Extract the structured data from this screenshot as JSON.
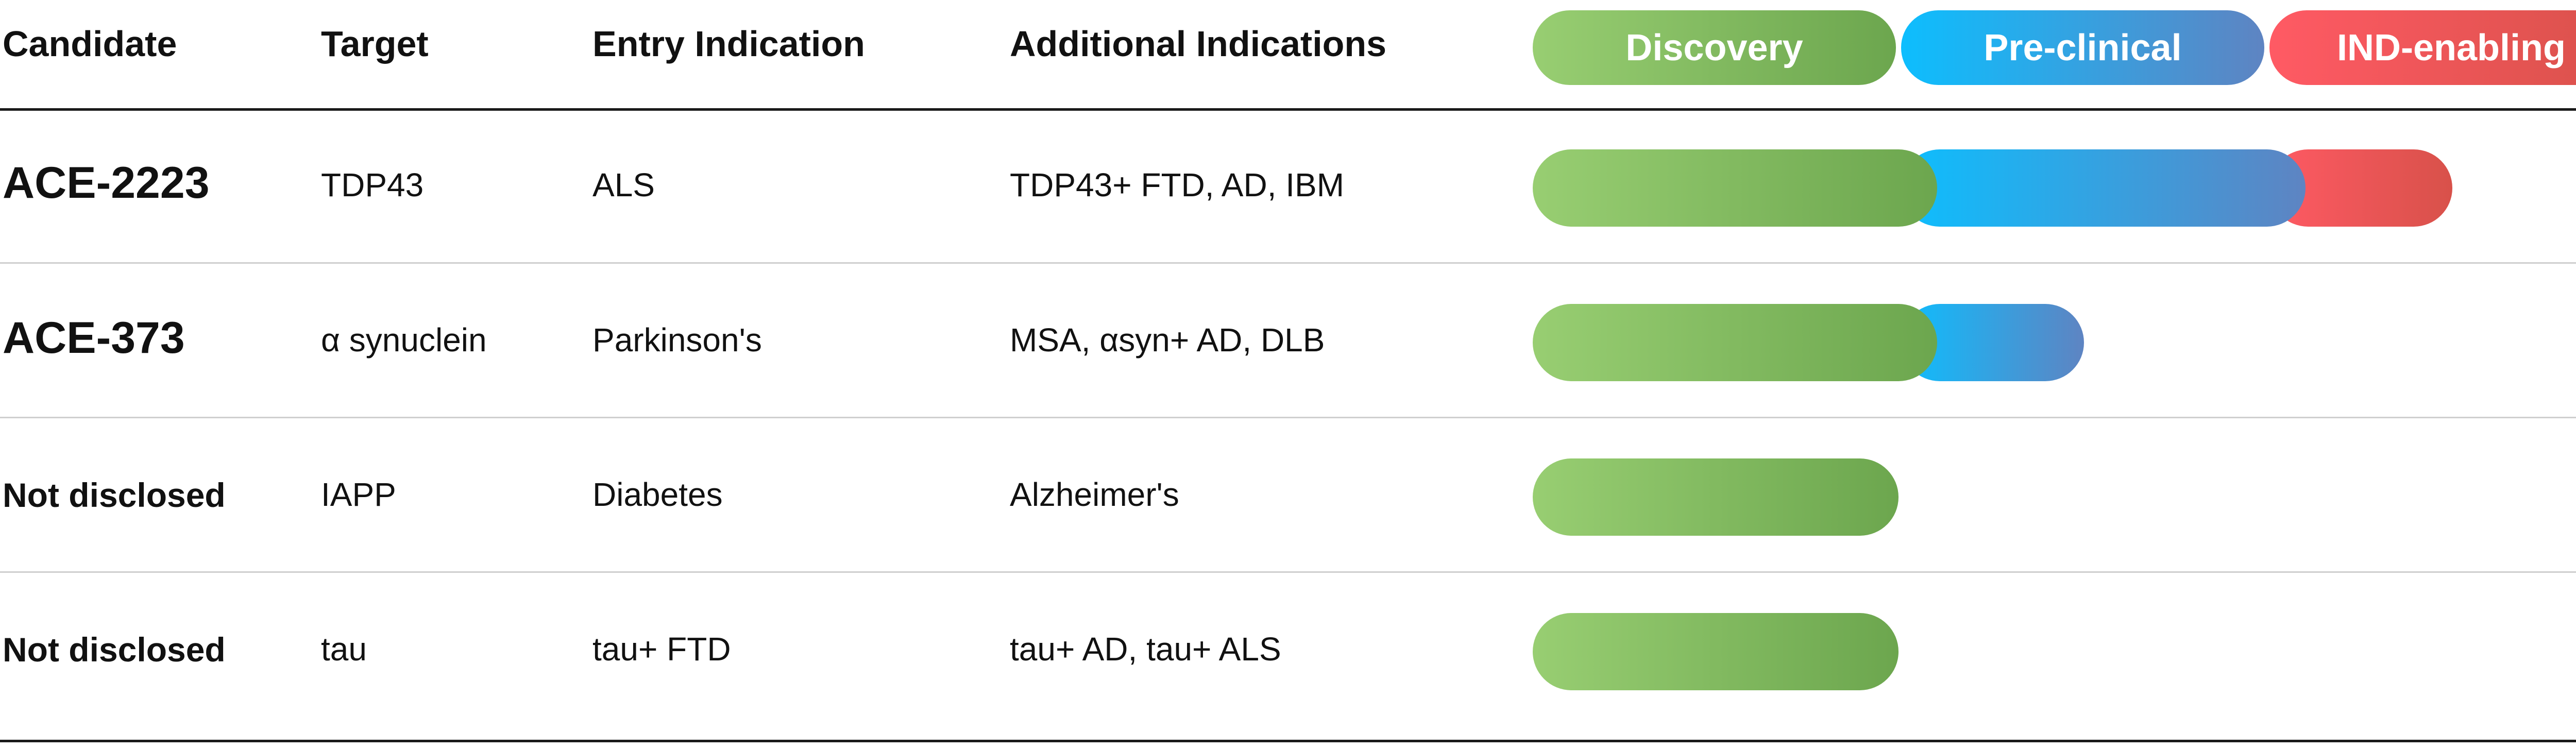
{
  "columns": {
    "candidate": "Candidate",
    "target": "Target",
    "entry": "Entry Indication",
    "additional": "Additional Indications"
  },
  "chart_data": {
    "type": "bar",
    "orientation": "horizontal",
    "stacked": true,
    "phases": [
      {
        "name": "Discovery",
        "color_start": "#98CE72",
        "color_end": "#6CA64E"
      },
      {
        "name": "Pre-clinical",
        "color_start": "#0DBEFE",
        "color_end": "#5E84C2"
      },
      {
        "name": "IND-enabling",
        "color_start": "#FF5A64",
        "color_end": "#D8514A"
      }
    ],
    "rows": [
      {
        "candidate": "ACE-2223",
        "target": "TDP43",
        "entry": "ALS",
        "additional": "TDP43+ FTD, AD, IBM",
        "progress": [
          1,
          1,
          0.5
        ]
      },
      {
        "candidate": "ACE-373",
        "target": "α synuclein",
        "entry": "Parkinson's",
        "additional": "MSA, αsyn+ AD, DLB",
        "progress": [
          1,
          0.5,
          0
        ]
      },
      {
        "candidate": "Not disclosed",
        "target": "IAPP",
        "entry": "Diabetes",
        "additional": "Alzheimer's",
        "progress": [
          1,
          0,
          0
        ]
      },
      {
        "candidate": "Not disclosed",
        "target": "tau",
        "entry": "tau+ FTD",
        "additional": "tau+ AD, tau+ ALS",
        "progress": [
          1,
          0,
          0
        ]
      }
    ]
  }
}
